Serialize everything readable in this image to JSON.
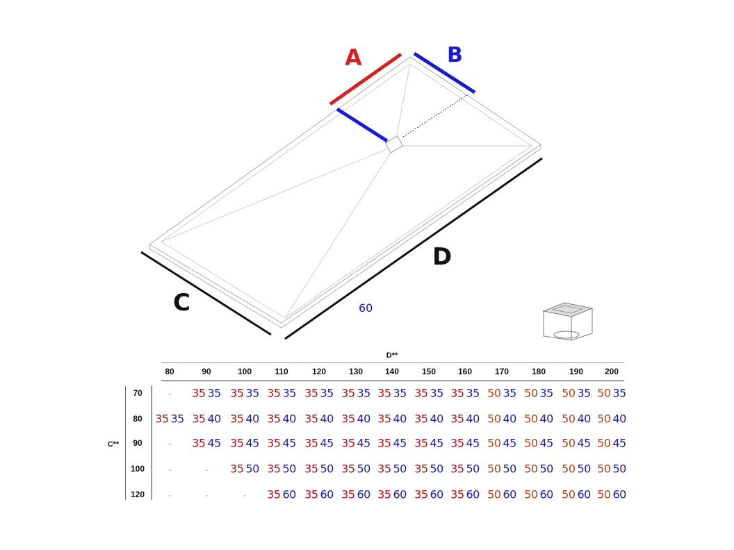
{
  "labels": {
    "a": "A",
    "b": "B",
    "c": "C",
    "d": "D",
    "sixty": "60"
  },
  "colors": {
    "a_red": "#b01018",
    "a_orange": "#a8401c",
    "b_blue": "#1a1a9c",
    "c_black": "#111111"
  },
  "icons": {
    "drain": "drain-grate-icon"
  },
  "table": {
    "column_title": "D**",
    "row_title": "C**",
    "columns": [
      "80",
      "90",
      "100",
      "110",
      "120",
      "130",
      "140",
      "150",
      "160",
      "170",
      "180",
      "190",
      "200"
    ],
    "rows": [
      {
        "c": "70",
        "cells": [
          null,
          [
            "35",
            "35"
          ],
          [
            "35",
            "35"
          ],
          [
            "35",
            "35"
          ],
          [
            "35",
            "35"
          ],
          [
            "35",
            "35"
          ],
          [
            "35",
            "35"
          ],
          [
            "35",
            "35"
          ],
          [
            "35",
            "35"
          ],
          [
            "50",
            "35"
          ],
          [
            "50",
            "35"
          ],
          [
            "50",
            "35"
          ],
          [
            "50",
            "35"
          ]
        ]
      },
      {
        "c": "80",
        "cells": [
          [
            "35",
            "35"
          ],
          [
            "35",
            "40"
          ],
          [
            "35",
            "40"
          ],
          [
            "35",
            "40"
          ],
          [
            "35",
            "40"
          ],
          [
            "35",
            "40"
          ],
          [
            "35",
            "40"
          ],
          [
            "35",
            "40"
          ],
          [
            "35",
            "40"
          ],
          [
            "50",
            "40"
          ],
          [
            "50",
            "40"
          ],
          [
            "50",
            "40"
          ],
          [
            "50",
            "40"
          ]
        ]
      },
      {
        "c": "90",
        "cells": [
          null,
          [
            "35",
            "45"
          ],
          [
            "35",
            "45"
          ],
          [
            "35",
            "45"
          ],
          [
            "35",
            "45"
          ],
          [
            "35",
            "45"
          ],
          [
            "35",
            "45"
          ],
          [
            "35",
            "45"
          ],
          [
            "35",
            "45"
          ],
          [
            "50",
            "45"
          ],
          [
            "50",
            "45"
          ],
          [
            "50",
            "45"
          ],
          [
            "50",
            "45"
          ]
        ]
      },
      {
        "c": "100",
        "cells": [
          null,
          null,
          [
            "35",
            "50"
          ],
          [
            "35",
            "50"
          ],
          [
            "35",
            "50"
          ],
          [
            "35",
            "50"
          ],
          [
            "35",
            "50"
          ],
          [
            "35",
            "50"
          ],
          [
            "35",
            "50"
          ],
          [
            "50",
            "50"
          ],
          [
            "50",
            "50"
          ],
          [
            "50",
            "50"
          ],
          [
            "50",
            "50"
          ]
        ]
      },
      {
        "c": "120",
        "cells": [
          null,
          null,
          null,
          [
            "35",
            "60"
          ],
          [
            "35",
            "60"
          ],
          [
            "35",
            "60"
          ],
          [
            "35",
            "60"
          ],
          [
            "35",
            "60"
          ],
          [
            "35",
            "60"
          ],
          [
            "50",
            "60"
          ],
          [
            "50",
            "60"
          ],
          [
            "50",
            "60"
          ],
          [
            "50",
            "60"
          ]
        ]
      }
    ],
    "empty_mark": "-"
  }
}
